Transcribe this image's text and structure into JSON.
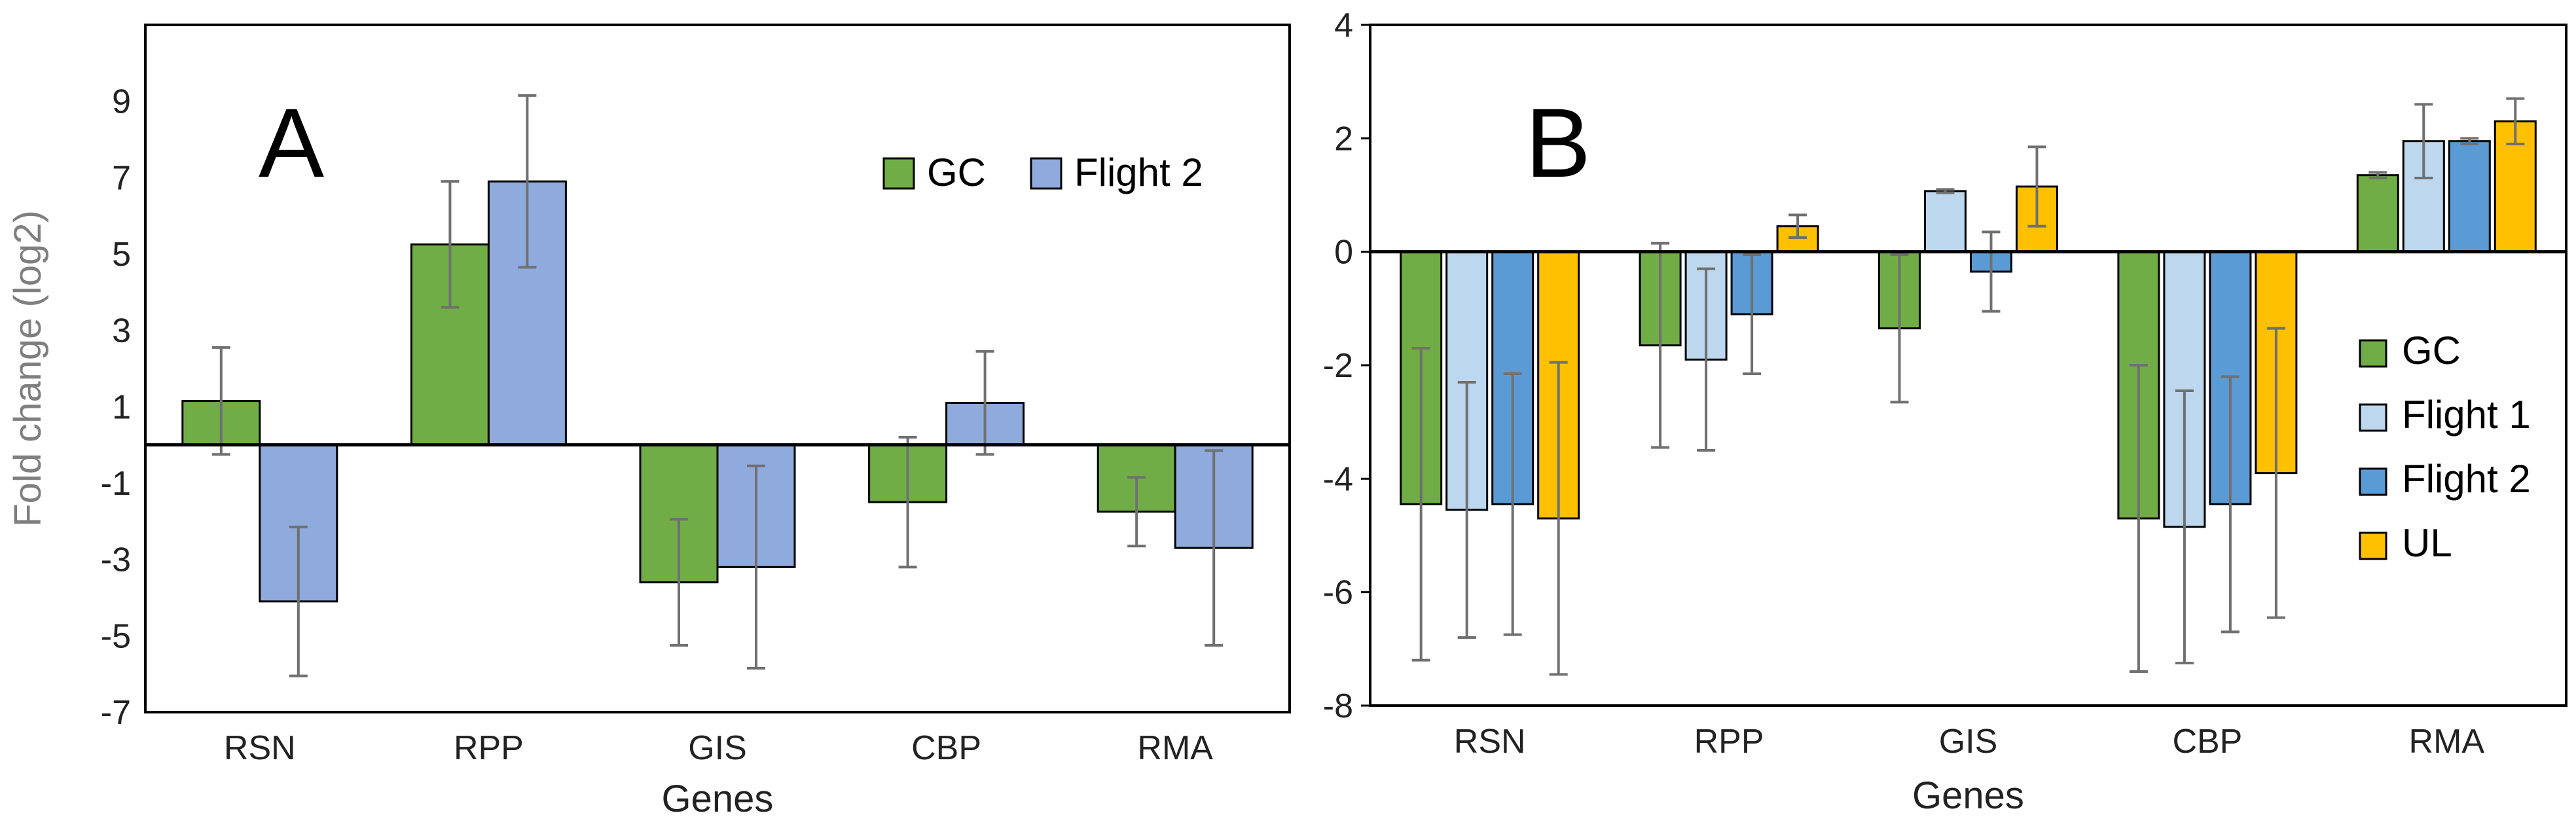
{
  "chart_data": [
    {
      "type": "bar",
      "panel_label": "A",
      "title": "",
      "xlabel": "Genes",
      "ylabel": "Fold change (log2)",
      "ylim": [
        -7,
        11
      ],
      "yticks": [
        -7,
        -5,
        -3,
        -1,
        1,
        3,
        5,
        7,
        9
      ],
      "grid": false,
      "legend_position": "top-right",
      "categories": [
        "RSN",
        "RPP",
        "GIS",
        "CBP",
        "RMA"
      ],
      "series": [
        {
          "name": "GC",
          "color": "#70ad47",
          "values": [
            1.15,
            5.25,
            -3.6,
            -1.5,
            -1.75
          ],
          "errors": [
            1.4,
            1.65,
            1.65,
            1.7,
            0.9
          ]
        },
        {
          "name": "Flight 2",
          "color": "#8faadc",
          "values": [
            -4.1,
            6.9,
            -3.2,
            1.1,
            -2.7
          ],
          "errors": [
            1.95,
            2.25,
            2.65,
            1.35,
            2.55
          ]
        }
      ]
    },
    {
      "type": "bar",
      "panel_label": "B",
      "title": "",
      "xlabel": "Genes",
      "ylabel": "",
      "ylim": [
        -8,
        4
      ],
      "yticks": [
        -8,
        -6,
        -4,
        -2,
        0,
        2,
        4
      ],
      "grid": false,
      "legend_position": "right",
      "categories": [
        "RSN",
        "RPP",
        "GIS",
        "CBP",
        "RMA"
      ],
      "series": [
        {
          "name": "GC",
          "color": "#70ad47",
          "values": [
            -4.45,
            -1.65,
            -1.35,
            -4.7,
            1.35
          ],
          "errors": [
            2.75,
            1.8,
            1.3,
            2.7,
            0.05
          ]
        },
        {
          "name": "Flight 1",
          "color": "#bdd7ee",
          "values": [
            -4.55,
            -1.9,
            1.07,
            -4.85,
            1.95
          ],
          "errors": [
            2.25,
            1.6,
            0.03,
            2.4,
            0.65
          ]
        },
        {
          "name": "Flight 2",
          "color": "#5b9bd5",
          "values": [
            -4.45,
            -1.1,
            -0.35,
            -4.45,
            1.95
          ],
          "errors": [
            2.3,
            1.05,
            0.7,
            2.25,
            0.05
          ]
        },
        {
          "name": "UL",
          "color": "#ffc000",
          "values": [
            -4.7,
            0.45,
            1.15,
            -3.9,
            2.3
          ],
          "errors": [
            2.75,
            0.2,
            0.7,
            2.55,
            0.4
          ]
        }
      ]
    }
  ]
}
